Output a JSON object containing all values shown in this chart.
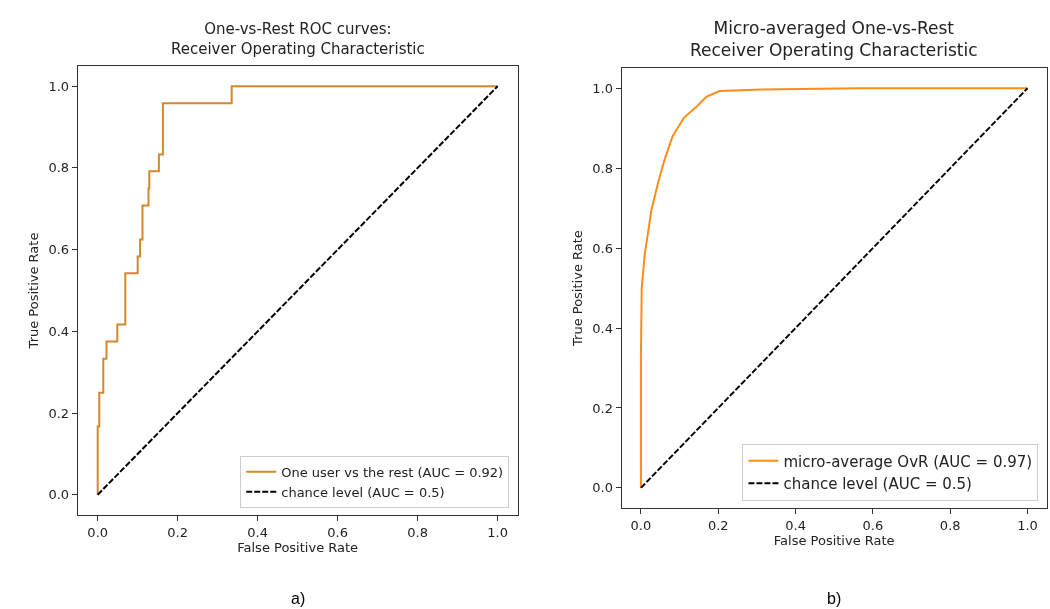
{
  "chart_data": [
    {
      "type": "line",
      "title": "One-vs-Rest ROC curves:\nReceiver Operating Characteristic",
      "xlabel": "False Positive Rate",
      "ylabel": "True Positive Rate",
      "annotations": [
        "a)"
      ],
      "xlim": [
        -0.05,
        1.05
      ],
      "ylim": [
        -0.05,
        1.05
      ],
      "xticks": [
        {
          "value": 0,
          "label": "0.0"
        },
        {
          "value": 0.2,
          "label": "0.2"
        },
        {
          "value": 0.4,
          "label": "0.4"
        },
        {
          "value": 0.6,
          "label": "0.6"
        },
        {
          "value": 0.8,
          "label": "0.8"
        },
        {
          "value": 1,
          "label": "1.0"
        }
      ],
      "yticks": [
        {
          "value": 0,
          "label": "0.0"
        },
        {
          "value": 0.2,
          "label": "0.2"
        },
        {
          "value": 0.4,
          "label": "0.4"
        },
        {
          "value": 0.6,
          "label": "0.6"
        },
        {
          "value": 0.8,
          "label": "0.8"
        },
        {
          "value": 1,
          "label": "1.0"
        }
      ],
      "legend": "bottom right",
      "series": [
        {
          "name": "One user vs the rest (AUC = 0.92)",
          "type": "step",
          "color": "#d4872b",
          "x": [
            0,
            0,
            0.004,
            0.014,
            0.022,
            0.049,
            0.069,
            0.1,
            0.106,
            0.112,
            0.127,
            0.129,
            0.153,
            0.163,
            0.335,
            1
          ],
          "values": [
            0,
            0.167,
            0.25,
            0.333,
            0.375,
            0.417,
            0.542,
            0.583,
            0.625,
            0.708,
            0.75,
            0.792,
            0.833,
            0.958,
            1,
            1
          ]
        },
        {
          "name": "chance level (AUC = 0.5)",
          "line_style": "dashed",
          "color": "#000000",
          "x": [
            0,
            1
          ],
          "values": [
            0,
            1
          ]
        }
      ]
    },
    {
      "type": "line",
      "title": "Micro-averaged One-vs-Rest\nReceiver Operating Characteristic",
      "xlabel": "False Positive Rate",
      "ylabel": "True Positive Rate",
      "annotations": [
        "b)"
      ],
      "xlim": [
        -0.05,
        1.05
      ],
      "ylim": [
        -0.05,
        1.05
      ],
      "xticks": [
        {
          "value": 0,
          "label": "0.0"
        },
        {
          "value": 0.2,
          "label": "0.2"
        },
        {
          "value": 0.4,
          "label": "0.4"
        },
        {
          "value": 0.6,
          "label": "0.6"
        },
        {
          "value": 0.8,
          "label": "0.8"
        },
        {
          "value": 1,
          "label": "1.0"
        }
      ],
      "yticks": [
        {
          "value": 0,
          "label": "0.0"
        },
        {
          "value": 0.2,
          "label": "0.2"
        },
        {
          "value": 0.4,
          "label": "0.4"
        },
        {
          "value": 0.6,
          "label": "0.6"
        },
        {
          "value": 0.8,
          "label": "0.8"
        },
        {
          "value": 1,
          "label": "1.0"
        }
      ],
      "legend": "bottom right",
      "series": [
        {
          "name": "micro-average OvR (AUC = 0.97)",
          "color": "#ff8c1a",
          "x": [
            0,
            0,
            0.002,
            0.01,
            0.027,
            0.044,
            0.061,
            0.082,
            0.111,
            0.145,
            0.17,
            0.203,
            0.313,
            0.565,
            1
          ],
          "values": [
            0,
            0.33,
            0.5,
            0.585,
            0.694,
            0.762,
            0.821,
            0.88,
            0.926,
            0.955,
            0.979,
            0.993,
            0.997,
            1,
            1
          ]
        },
        {
          "name": "chance level (AUC = 0.5)",
          "line_style": "dashed",
          "color": "#000000",
          "x": [
            0,
            1
          ],
          "values": [
            0,
            1
          ]
        }
      ]
    }
  ]
}
